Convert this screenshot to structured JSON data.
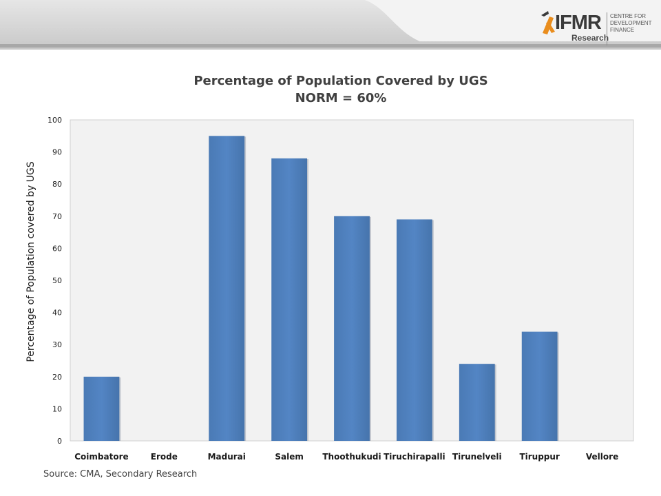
{
  "logo": {
    "brand_text": "IFMR",
    "sub_text": "Research",
    "tagline_lines": [
      "CENTRE FOR",
      "DEVELOPMENT",
      "FINANCE"
    ],
    "accent_color": "#e98d1d"
  },
  "chart_data": {
    "type": "bar",
    "title": "Percentage of Population Covered by UGS",
    "subtitle": "NORM = 60%",
    "xlabel": "",
    "ylabel": "Percentage of Population covered by UGS",
    "categories": [
      "Coimbatore",
      "Erode",
      "Madurai",
      "Salem",
      "Thoothukudi",
      "Tiruchirapalli",
      "Tirunelveli",
      "Tiruppur",
      "Vellore"
    ],
    "values": [
      20,
      0,
      95,
      88,
      70,
      69,
      24,
      34,
      0
    ],
    "ylim": [
      0,
      100
    ],
    "yticks": [
      0,
      10,
      20,
      30,
      40,
      50,
      60,
      70,
      80,
      90,
      100
    ],
    "grid": false,
    "legend": "none",
    "bar_color": "#4f81bd",
    "plot_background": "#f2f2f2"
  },
  "footer": {
    "source": "Source: CMA, Secondary Research"
  }
}
